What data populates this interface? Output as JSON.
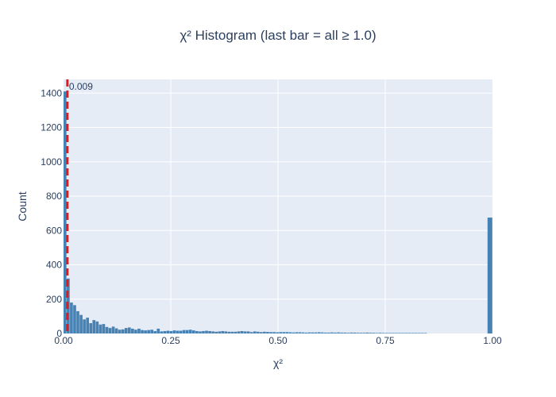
{
  "chart_data": {
    "type": "bar",
    "title": "χ² Histogram (last bar = all ≥ 1.0)",
    "xlabel": "χ²",
    "ylabel": "Count",
    "xlim": [
      0,
      1.0
    ],
    "ylim": [
      0,
      1480
    ],
    "bin_width": 0.0075,
    "x_ticks": [
      0,
      0.25,
      0.5,
      0.75,
      1.0
    ],
    "x_tick_labels": [
      "0.00",
      "0.25",
      "0.50",
      "0.75",
      "1.00"
    ],
    "y_ticks": [
      0,
      200,
      400,
      600,
      800,
      1000,
      1200,
      1400
    ],
    "y_tick_labels": [
      "0",
      "200",
      "400",
      "600",
      "800",
      "1000",
      "1200",
      "1400"
    ],
    "grid": true,
    "bar_color": "#4682b4",
    "plot_background": "#e5ecf6",
    "threshold": {
      "x": 0.009,
      "label": "0.009",
      "color": "#e31a1c",
      "style": "dashed"
    },
    "series": [
      {
        "values": [
          1410,
          320,
          180,
          165,
          130,
          108,
          82,
          92,
          60,
          78,
          70,
          52,
          55,
          38,
          32,
          40,
          30,
          22,
          24,
          32,
          35,
          28,
          22,
          28,
          20,
          18,
          20,
          22,
          14,
          28,
          12,
          14,
          16,
          14,
          18,
          16,
          16,
          20,
          20,
          22,
          18,
          14,
          12,
          14,
          16,
          14,
          12,
          10,
          12,
          14,
          12,
          10,
          10,
          10,
          12,
          14,
          12,
          12,
          8,
          12,
          10,
          8,
          10,
          9,
          8,
          8,
          7,
          8,
          8,
          8,
          7,
          6,
          7,
          7,
          6,
          5,
          6,
          6,
          6,
          7,
          6,
          5,
          5,
          6,
          5,
          6,
          5,
          5,
          4,
          5,
          5,
          4,
          4,
          4,
          5,
          4,
          4,
          3,
          4,
          3,
          3,
          3,
          3,
          3,
          3,
          3,
          3,
          3,
          3,
          3,
          3,
          3,
          3
        ],
        "overflow_bin": {
          "label": "≥ 1.0",
          "value": 675
        }
      }
    ]
  }
}
